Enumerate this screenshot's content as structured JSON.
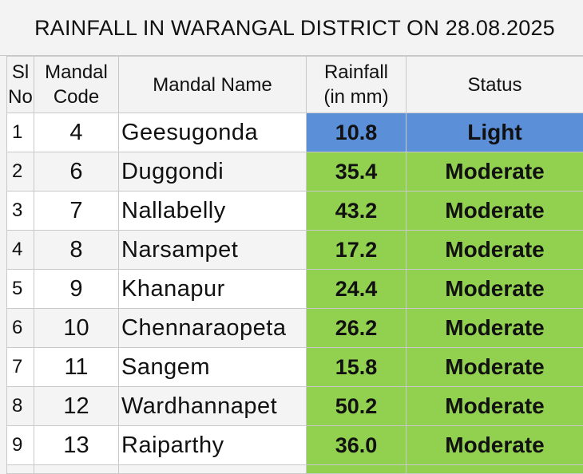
{
  "title": "RAINFALL IN WARANGAL DISTRICT ON 28.08.2025",
  "headers": {
    "sl_line1": "Sl",
    "sl_line2": "No",
    "code_line1": "Mandal",
    "code_line2": "Code",
    "name": "Mandal Name",
    "rain_line1": "Rainfall",
    "rain_line2": "(in mm)",
    "status": "Status"
  },
  "colors": {
    "light": "#5b8fd8",
    "moderate": "#92d050"
  },
  "rows": [
    {
      "sl": "1",
      "code": "4",
      "name": "Geesugonda",
      "rain": "10.8",
      "status": "Light"
    },
    {
      "sl": "2",
      "code": "6",
      "name": "Duggondi",
      "rain": "35.4",
      "status": "Moderate"
    },
    {
      "sl": "3",
      "code": "7",
      "name": "Nallabelly",
      "rain": "43.2",
      "status": "Moderate"
    },
    {
      "sl": "4",
      "code": "8",
      "name": "Narsampet",
      "rain": "17.2",
      "status": "Moderate"
    },
    {
      "sl": "5",
      "code": "9",
      "name": "Khanapur",
      "rain": "24.4",
      "status": "Moderate"
    },
    {
      "sl": "6",
      "code": "10",
      "name": "Chennaraopeta",
      "rain": "26.2",
      "status": "Moderate"
    },
    {
      "sl": "7",
      "code": "11",
      "name": "Sangem",
      "rain": "15.8",
      "status": "Moderate"
    },
    {
      "sl": "8",
      "code": "12",
      "name": "Wardhannapet",
      "rain": "50.2",
      "status": "Moderate"
    },
    {
      "sl": "9",
      "code": "13",
      "name": "Raiparthy",
      "rain": "36.0",
      "status": "Moderate"
    }
  ]
}
